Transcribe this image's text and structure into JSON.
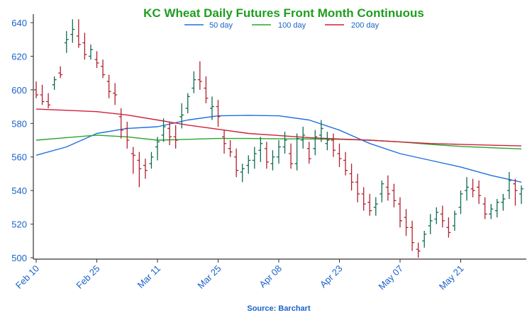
{
  "chart_data": {
    "type": "ohlc",
    "title": "KC Wheat Daily Futures Front Month Continuous",
    "source": "Source: Barchart",
    "xlabel": "",
    "ylabel": "",
    "ylim": [
      500,
      645
    ],
    "yticks": [
      500,
      520,
      540,
      560,
      580,
      600,
      620,
      640
    ],
    "grid": false,
    "legend_position": "top-center",
    "colors": {
      "title": "#1e9e1e",
      "text": "#1a62c9",
      "up": "#0e6b52",
      "down": "#b0202e",
      "ma50": "#1f6fe0",
      "ma100": "#2aa52a",
      "ma200": "#d21f3a",
      "axis": "#333333"
    },
    "xticks": [
      {
        "index": 0,
        "label": "Feb 10"
      },
      {
        "index": 10,
        "label": "Feb 25"
      },
      {
        "index": 20,
        "label": "Mar 11"
      },
      {
        "index": 30,
        "label": "Mar 25"
      },
      {
        "index": 40,
        "label": "Apr 08"
      },
      {
        "index": 50,
        "label": "Apr 23"
      },
      {
        "index": 60,
        "label": "May 07"
      },
      {
        "index": 70,
        "label": "May 21"
      }
    ],
    "ohlc": [
      [
        600,
        605,
        595,
        597
      ],
      [
        597,
        603,
        591,
        593
      ],
      [
        593,
        598,
        589,
        591
      ],
      [
        603,
        608,
        600,
        606
      ],
      [
        610,
        614,
        607,
        609
      ],
      [
        628,
        635,
        622,
        630
      ],
      [
        633,
        642,
        628,
        636
      ],
      [
        632,
        642,
        625,
        627
      ],
      [
        628,
        634,
        618,
        621
      ],
      [
        620,
        627,
        618,
        624
      ],
      [
        618,
        623,
        613,
        616
      ],
      [
        614,
        618,
        607,
        609
      ],
      [
        605,
        609,
        595,
        599
      ],
      [
        598,
        604,
        591,
        597
      ],
      [
        584,
        589,
        571,
        576
      ],
      [
        577,
        581,
        565,
        570
      ],
      [
        562,
        566,
        550,
        561
      ],
      [
        558,
        563,
        542,
        553
      ],
      [
        555,
        559,
        547,
        552
      ],
      [
        556,
        563,
        553,
        560
      ],
      [
        566,
        572,
        558,
        569
      ],
      [
        573,
        583,
        569,
        578
      ],
      [
        577,
        581,
        567,
        572
      ],
      [
        572,
        579,
        565,
        570
      ],
      [
        584,
        592,
        577,
        585
      ],
      [
        589,
        598,
        586,
        596
      ],
      [
        601,
        611,
        598,
        606
      ],
      [
        606,
        617,
        600,
        605
      ],
      [
        601,
        608,
        592,
        595
      ],
      [
        589,
        596,
        582,
        590
      ],
      [
        590,
        594,
        578,
        584
      ],
      [
        572,
        576,
        562,
        568
      ],
      [
        565,
        570,
        560,
        563
      ],
      [
        560,
        565,
        548,
        552
      ],
      [
        551,
        556,
        545,
        553
      ],
      [
        555,
        561,
        550,
        558
      ],
      [
        558,
        566,
        553,
        562
      ],
      [
        564,
        572,
        557,
        568
      ],
      [
        565,
        569,
        553,
        557
      ],
      [
        556,
        564,
        552,
        560
      ],
      [
        560,
        570,
        556,
        566
      ],
      [
        566,
        575,
        562,
        570
      ],
      [
        562,
        568,
        553,
        556
      ],
      [
        556,
        574,
        552,
        571
      ],
      [
        570,
        578,
        565,
        573
      ],
      [
        565,
        569,
        556,
        559
      ],
      [
        565,
        576,
        561,
        572
      ],
      [
        573,
        582,
        569,
        577
      ],
      [
        568,
        575,
        564,
        570
      ],
      [
        570,
        574,
        560,
        564
      ],
      [
        562,
        568,
        554,
        559
      ],
      [
        558,
        563,
        549,
        552
      ],
      [
        550,
        556,
        540,
        545
      ],
      [
        545,
        550,
        533,
        538
      ],
      [
        538,
        542,
        528,
        532
      ],
      [
        533,
        538,
        525,
        528
      ],
      [
        530,
        536,
        525,
        532
      ],
      [
        538,
        546,
        533,
        544
      ],
      [
        542,
        549,
        534,
        538
      ],
      [
        540,
        544,
        530,
        534
      ],
      [
        532,
        536,
        518,
        522
      ],
      [
        524,
        529,
        513,
        518
      ],
      [
        518,
        522,
        504,
        509
      ],
      [
        505,
        509,
        500,
        504
      ],
      [
        510,
        516,
        506,
        514
      ],
      [
        519,
        526,
        514,
        522
      ],
      [
        523,
        530,
        520,
        527
      ],
      [
        526,
        531,
        518,
        522
      ],
      [
        518,
        524,
        512,
        515
      ],
      [
        519,
        528,
        516,
        526
      ],
      [
        530,
        540,
        526,
        538
      ],
      [
        540,
        548,
        534,
        542
      ],
      [
        541,
        547,
        536,
        540
      ],
      [
        542,
        546,
        532,
        537
      ],
      [
        532,
        536,
        523,
        526
      ],
      [
        526,
        532,
        523,
        529
      ],
      [
        528,
        535,
        524,
        533
      ],
      [
        533,
        538,
        528,
        535
      ],
      [
        540,
        551,
        535,
        546
      ],
      [
        544,
        547,
        531,
        540
      ],
      [
        538,
        543,
        532,
        541
      ]
    ],
    "series": [
      {
        "name": "50 day",
        "x": [
          0,
          5,
          10,
          15,
          20,
          25,
          30,
          35,
          40,
          45,
          50,
          55,
          60,
          65,
          70,
          75,
          80
        ],
        "values": [
          561,
          566,
          574,
          577,
          578,
          582,
          584.5,
          584.8,
          584.5,
          582,
          576,
          568,
          562,
          558,
          554,
          549,
          545
        ]
      },
      {
        "name": "100 day",
        "x": [
          0,
          5,
          10,
          15,
          20,
          25,
          30,
          35,
          40,
          45,
          50,
          55,
          60,
          65,
          70,
          75,
          80
        ],
        "values": [
          570,
          571.5,
          573,
          572,
          570,
          570.5,
          571,
          571,
          570.8,
          570.7,
          570.5,
          570,
          569,
          567.5,
          566.3,
          565.5,
          564.8
        ]
      },
      {
        "name": "200 day",
        "x": [
          0,
          5,
          10,
          15,
          20,
          25,
          30,
          35,
          40,
          45,
          50,
          55,
          60,
          65,
          70,
          75,
          80
        ],
        "values": [
          588.5,
          587.8,
          587,
          585,
          582,
          579,
          576.5,
          574,
          572.8,
          571.5,
          570.7,
          570,
          569,
          568,
          567.5,
          567,
          566.6
        ]
      }
    ]
  }
}
